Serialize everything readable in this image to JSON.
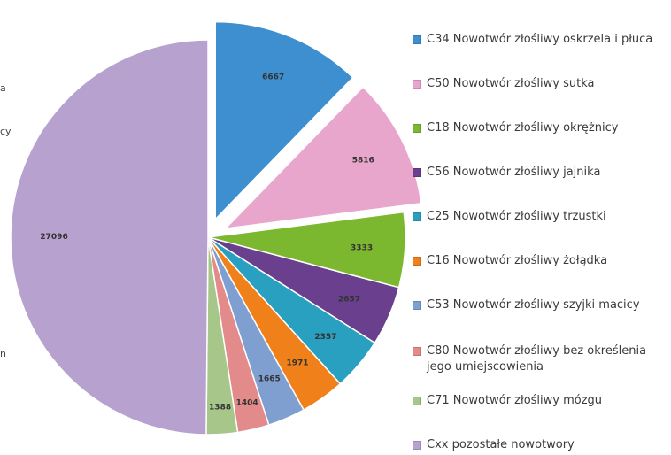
{
  "chart_data": {
    "type": "pie",
    "title": "",
    "categories": [
      "C34 Nowotwór złośliwy oskrzela i płuca",
      "C50 Nowotwór złośliwy sutka",
      "C18 Nowotwór złośliwy okrężnicy",
      "C56 Nowotwór złośliwy jajnika",
      "C25 Nowotwór złośliwy trzustki",
      "C16 Nowotwór złośliwy żołądka",
      "C53 Nowotwór złośliwy szyjki macicy",
      "C80 Nowotwór złośliwy bez określenia jego umiejscowienia",
      "C71 Nowotwór złośliwy mózgu",
      "Cxx pozostałe nowotwory"
    ],
    "values": [
      6667,
      5816,
      3333,
      2657,
      2357,
      1971,
      1665,
      1404,
      1388,
      27096
    ],
    "value_labels": [
      "6667",
      "5816",
      "3333",
      "2657",
      "2357",
      "1971",
      "1665",
      "1404",
      "1388",
      "27096"
    ],
    "colors": [
      "#3d8fcf",
      "#e8a6cc",
      "#7cb82f",
      "#6a3f8e",
      "#2aa0c0",
      "#f08019",
      "#7e9fd0",
      "#e38a8a",
      "#a6c68a",
      "#b7a2cf"
    ],
    "legend_position": "right",
    "exploded": [
      "C34 Nowotwór złośliwy oskrzela i płuca",
      "C50 Nowotwór złośliwy sutka"
    ]
  },
  "cutoff_text": [
    "a",
    "cy",
    "n"
  ]
}
